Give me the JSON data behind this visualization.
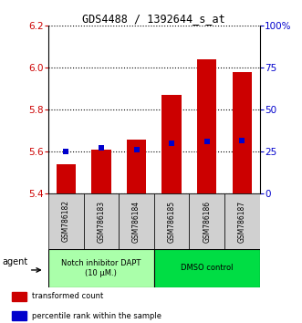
{
  "title": "GDS4488 / 1392644_s_at",
  "samples": [
    "GSM786182",
    "GSM786183",
    "GSM786184",
    "GSM786185",
    "GSM786186",
    "GSM786187"
  ],
  "bar_values": [
    5.54,
    5.61,
    5.66,
    5.87,
    6.04,
    5.98
  ],
  "bar_bottom": 5.4,
  "blue_values": [
    5.603,
    5.617,
    5.61,
    5.642,
    5.648,
    5.655
  ],
  "bar_color": "#cc0000",
  "blue_color": "#0000cc",
  "ylim": [
    5.4,
    6.2
  ],
  "yticks_left": [
    5.4,
    5.6,
    5.8,
    6.0,
    6.2
  ],
  "yticks_right_vals": [
    0,
    25,
    50,
    75,
    100
  ],
  "yticks_right_labels": [
    "0",
    "25",
    "50",
    "75",
    "100%"
  ],
  "groups": [
    {
      "label": "Notch inhibitor DAPT\n(10 μM.)",
      "color": "#aaffaa",
      "span": [
        0,
        3
      ]
    },
    {
      "label": "DMSO control",
      "color": "#00dd44",
      "span": [
        3,
        6
      ]
    }
  ],
  "legend_items": [
    {
      "color": "#cc0000",
      "label": "transformed count"
    },
    {
      "color": "#0000cc",
      "label": "percentile rank within the sample"
    }
  ],
  "agent_label": "agent",
  "bar_width": 0.55,
  "grid_linestyle": ":"
}
